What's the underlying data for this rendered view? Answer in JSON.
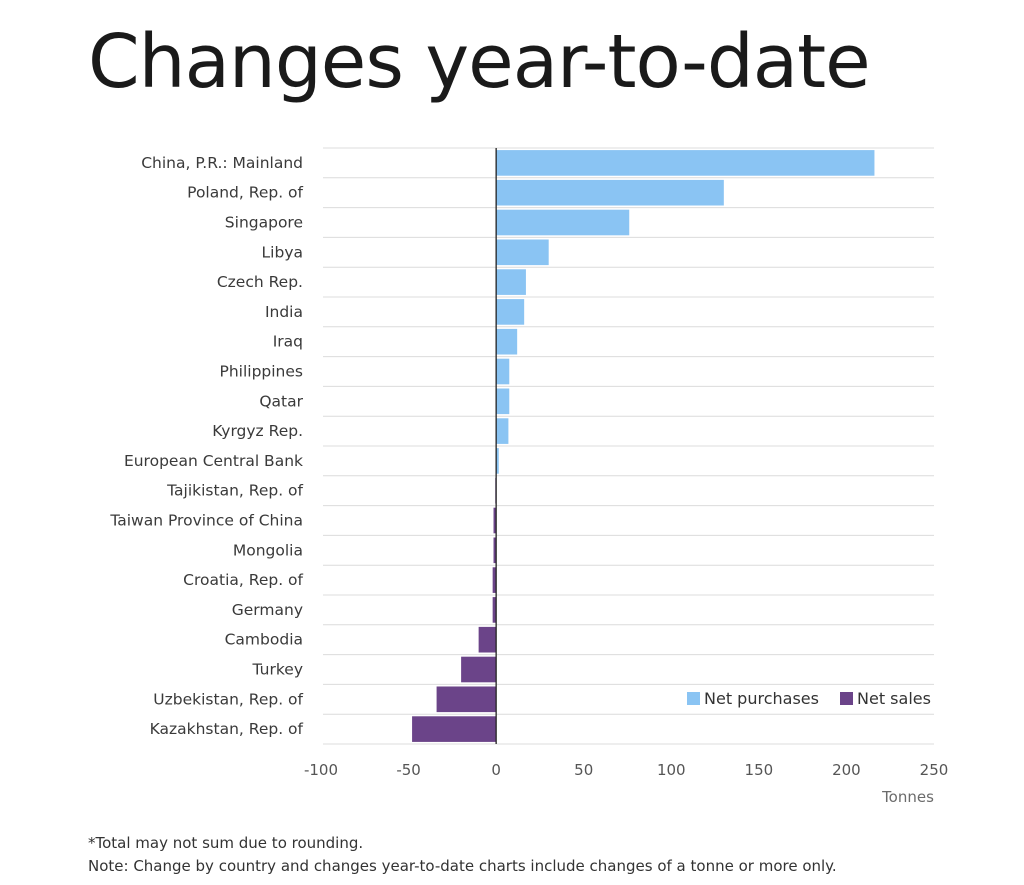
{
  "title": "Changes year-to-date",
  "chart_data": {
    "type": "bar",
    "orientation": "horizontal",
    "title": "Changes year-to-date",
    "xlabel": "Tonnes",
    "ylabel": "",
    "xlim": [
      -100,
      250
    ],
    "xticks": [
      -100,
      -50,
      0,
      50,
      100,
      150,
      200,
      250
    ],
    "xtick_labels": [
      "-100",
      "-50",
      "0",
      "50",
      "100",
      "150",
      "200",
      "250"
    ],
    "categories": [
      "China, P.R.: Mainland",
      "Poland, Rep. of",
      "Singapore",
      "Libya",
      "Czech Rep.",
      "India",
      "Iraq",
      "Philippines",
      "Qatar",
      "Kyrgyz Rep.",
      "European Central Bank",
      "Tajikistan, Rep. of",
      "Taiwan Province of China",
      "Mongolia",
      "Croatia, Rep. of",
      "Germany",
      "Cambodia",
      "Turkey",
      "Uzbekistan, Rep. of",
      "Kazakhstan, Rep. of"
    ],
    "values": [
      216,
      130,
      76,
      30,
      17,
      16,
      12,
      7.5,
      7.5,
      7,
      1.5,
      -0.5,
      -1.5,
      -1.5,
      -2,
      -2,
      -10,
      -20,
      -34,
      -48
    ],
    "legend": {
      "position": "bottom-right",
      "entries": [
        {
          "label": "Net purchases",
          "color": "#8ac4f3"
        },
        {
          "label": "Net sales",
          "color": "#6b4489"
        }
      ]
    },
    "grid": "horizontal"
  },
  "footnotes": [
    "*Total may not sum due to rounding.",
    "Note: Change by country and changes year-to-date charts include changes of a tonne or more only."
  ]
}
